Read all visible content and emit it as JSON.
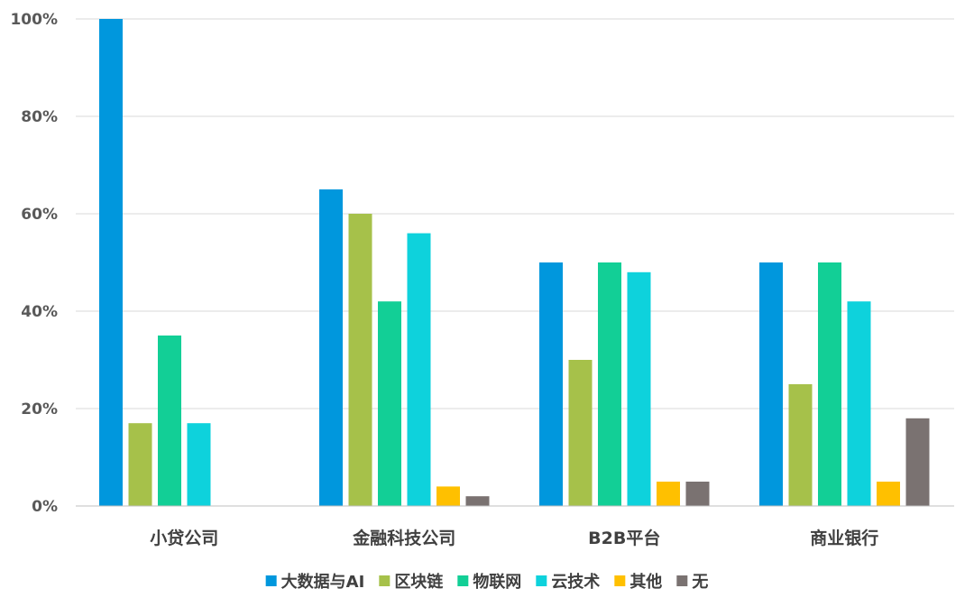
{
  "chart_data": {
    "type": "bar",
    "categories": [
      "小贷公司",
      "金融科技公司",
      "B2B平台",
      "商业银行"
    ],
    "series": [
      {
        "name": "大数据与AI",
        "color": "#0097DD",
        "values": [
          100,
          65,
          50,
          50
        ]
      },
      {
        "name": "区块链",
        "color": "#A6C14A",
        "values": [
          17,
          60,
          30,
          25
        ]
      },
      {
        "name": "物联网",
        "color": "#12CF96",
        "values": [
          35,
          42,
          50,
          50
        ]
      },
      {
        "name": "云技术",
        "color": "#0ED2DC",
        "values": [
          17,
          56,
          48,
          42
        ]
      },
      {
        "name": "其他",
        "color": "#FFC000",
        "values": [
          0,
          4,
          5,
          5
        ]
      },
      {
        "name": "无",
        "color": "#7A7271",
        "values": [
          0,
          2,
          5,
          18
        ]
      }
    ],
    "ylim": [
      0,
      100
    ],
    "yticks": [
      0,
      20,
      40,
      60,
      80,
      100
    ],
    "ytick_labels": [
      "0%",
      "20%",
      "40%",
      "60%",
      "80%",
      "100%"
    ],
    "grid": true,
    "legend": "bottom",
    "title": "",
    "xlabel": "",
    "ylabel": ""
  }
}
